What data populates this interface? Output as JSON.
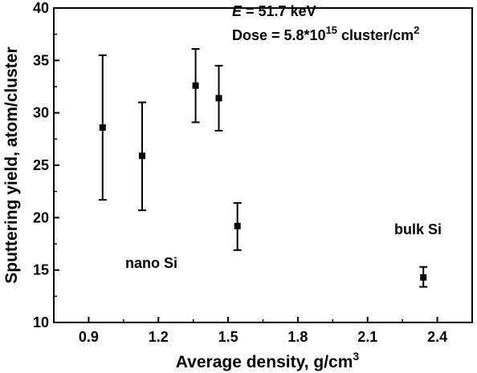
{
  "chart_data": {
    "type": "scatter",
    "title": "",
    "xlabel": "Average density, g/cm",
    "xlabel_sup": "3",
    "ylabel": "Sputtering yield, atom/cluster",
    "xlim": [
      0.75,
      2.55
    ],
    "ylim": [
      10,
      40
    ],
    "xticks": [
      "0.9",
      "1.2",
      "1.5",
      "1.8",
      "2.1",
      "2.4"
    ],
    "yticks": [
      "10",
      "15",
      "20",
      "25",
      "30",
      "35",
      "40"
    ],
    "grid": false,
    "legend": "none",
    "marker": "square",
    "color": "#000000",
    "points": [
      {
        "x": 0.96,
        "y": 28.6,
        "err_low": 21.7,
        "err_high": 35.5
      },
      {
        "x": 1.13,
        "y": 25.9,
        "err_low": 20.7,
        "err_high": 31.0
      },
      {
        "x": 1.36,
        "y": 32.6,
        "err_low": 29.1,
        "err_high": 36.1
      },
      {
        "x": 1.46,
        "y": 31.4,
        "err_low": 28.3,
        "err_high": 34.5
      },
      {
        "x": 1.54,
        "y": 19.2,
        "err_low": 16.9,
        "err_high": 21.4
      },
      {
        "x": 2.34,
        "y": 14.3,
        "err_low": 13.4,
        "err_high": 15.3
      }
    ],
    "annotations": {
      "energy_symbol": "E",
      "energy_value": " = 51.7 keV",
      "dose_text": "Dose = 5.8*10",
      "dose_exp": "15",
      "dose_unit": " cluster/cm",
      "dose_unit_exp": "2",
      "nano_label": "nano Si",
      "bulk_label": "bulk Si"
    }
  }
}
